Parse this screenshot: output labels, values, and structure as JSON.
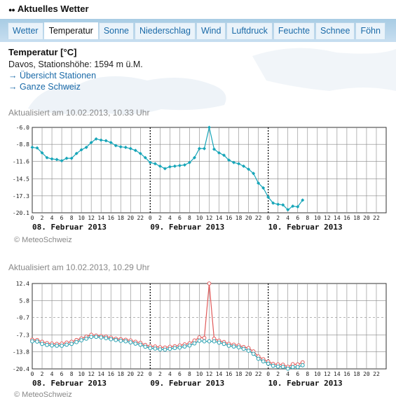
{
  "header_title": "Aktuelles Wetter",
  "tabs": [
    "Wetter",
    "Temperatur",
    "Sonne",
    "Niederschlag",
    "Wind",
    "Luftdruck",
    "Feuchte",
    "Schnee",
    "Föhn"
  ],
  "active_tab": "Temperatur",
  "page": {
    "title": "Temperatur [°C]",
    "station": "Davos, Stationshöhe: 1594 m ü.M.",
    "links": [
      "Übersicht Stationen",
      "Ganze Schweiz"
    ]
  },
  "copyright": "© MeteoSchweiz",
  "colors": {
    "accent": "#1a6aa8",
    "series1": "#17a5b8",
    "series2_red": "#e05a5a",
    "series2_teal": "#2aa0b0",
    "grid": "#888888"
  },
  "chart_data": [
    {
      "type": "line",
      "updated": "Aktualisiert am 10.02.2013, 10.33 Uhr",
      "x_tick_labels": [
        "0",
        "2",
        "4",
        "6",
        "8",
        "10",
        "12",
        "14",
        "16",
        "18",
        "20",
        "22",
        "0",
        "2",
        "4",
        "6",
        "8",
        "10",
        "12",
        "14",
        "16",
        "18",
        "20",
        "22",
        "0",
        "2",
        "4",
        "6",
        "8",
        "10",
        "12",
        "14",
        "16",
        "18",
        "20",
        "22"
      ],
      "date_labels": [
        "08. Februar 2013",
        "09. Februar 2013",
        "10. Februar 2013"
      ],
      "y_tick_labels": [
        "-6.0",
        "-8.8",
        "-11.6",
        "-14.5",
        "-17.3",
        "-20.1"
      ],
      "ylim": [
        -20.1,
        -6.0
      ],
      "grid": true,
      "series": [
        {
          "values": [
            -9.3,
            -9.4,
            -10.2,
            -11.0,
            -11.2,
            -11.3,
            -11.5,
            -11.1,
            -11.1,
            -10.3,
            -9.7,
            -9.3,
            -8.5,
            -7.9,
            -8.1,
            -8.2,
            -8.5,
            -9.0,
            -9.2,
            -9.3,
            -9.5,
            -9.8,
            -10.3,
            -11.0,
            -11.8,
            -12.0,
            -12.4,
            -12.8,
            -12.5,
            -12.4,
            -12.3,
            -12.2,
            -11.8,
            -11.0,
            -9.5,
            -9.5,
            -6.0,
            -9.6,
            -10.2,
            -10.6,
            -11.4,
            -11.8,
            -12.0,
            -12.4,
            -12.9,
            -13.6,
            -15.2,
            -16.0,
            -17.5,
            -18.5,
            -18.7,
            -18.8,
            -19.6,
            -19.0,
            -19.1,
            -18.0
          ]
        }
      ]
    },
    {
      "type": "line",
      "updated": "Aktualisiert am 10.02.2013, 10.29 Uhr",
      "x_tick_labels": [
        "0",
        "2",
        "4",
        "6",
        "8",
        "10",
        "12",
        "14",
        "16",
        "18",
        "20",
        "22",
        "0",
        "2",
        "4",
        "6",
        "8",
        "10",
        "12",
        "14",
        "16",
        "18",
        "20",
        "22",
        "0",
        "2",
        "4",
        "6",
        "8",
        "10",
        "12",
        "14",
        "16",
        "18",
        "20",
        "22"
      ],
      "date_labels": [
        "08. Februar 2013",
        "09. Februar 2013",
        "10. Februar 2013"
      ],
      "y_tick_labels": [
        "12.4",
        "5.8",
        "-0.7",
        "-7.3",
        "-13.8",
        "-20.4"
      ],
      "ylim": [
        -20.4,
        12.4
      ],
      "grid": true,
      "series": [
        {
          "values": [
            -9.2,
            -9.3,
            -10.0,
            -10.5,
            -10.7,
            -10.8,
            -10.7,
            -10.3,
            -10.0,
            -9.3,
            -8.7,
            -8.0,
            -7.3,
            -7.6,
            -7.8,
            -8.0,
            -8.4,
            -8.8,
            -9.0,
            -9.2,
            -9.5,
            -10.0,
            -10.4,
            -11.2,
            -11.7,
            -11.8,
            -12.1,
            -12.2,
            -11.9,
            -11.7,
            -11.4,
            -11.0,
            -10.6,
            -9.5,
            -8.3,
            -8.5,
            12.4,
            -8.8,
            -9.6,
            -10.1,
            -10.8,
            -11.1,
            -11.4,
            -12.0,
            -12.4,
            -13.7,
            -15.6,
            -16.7,
            -17.6,
            -18.5,
            -18.7,
            -18.8,
            -19.6,
            -18.6,
            -18.7,
            -17.9
          ]
        },
        {
          "values": [
            -9.8,
            -9.9,
            -10.8,
            -11.2,
            -11.4,
            -11.5,
            -11.5,
            -11.1,
            -10.8,
            -10.1,
            -9.4,
            -8.8,
            -8.1,
            -8.1,
            -8.3,
            -8.6,
            -9.0,
            -9.3,
            -9.6,
            -9.8,
            -10.2,
            -10.7,
            -11.1,
            -11.9,
            -12.4,
            -12.6,
            -12.9,
            -13.0,
            -12.7,
            -12.4,
            -12.2,
            -11.8,
            -11.4,
            -10.6,
            -9.6,
            -9.8,
            -9.8,
            -9.8,
            -10.3,
            -10.8,
            -11.5,
            -11.8,
            -12.1,
            -12.7,
            -13.4,
            -14.6,
            -16.5,
            -17.5,
            -18.4,
            -19.2,
            -19.5,
            -19.6,
            -20.3,
            -19.7,
            -19.7,
            -19.0
          ]
        }
      ]
    }
  ]
}
